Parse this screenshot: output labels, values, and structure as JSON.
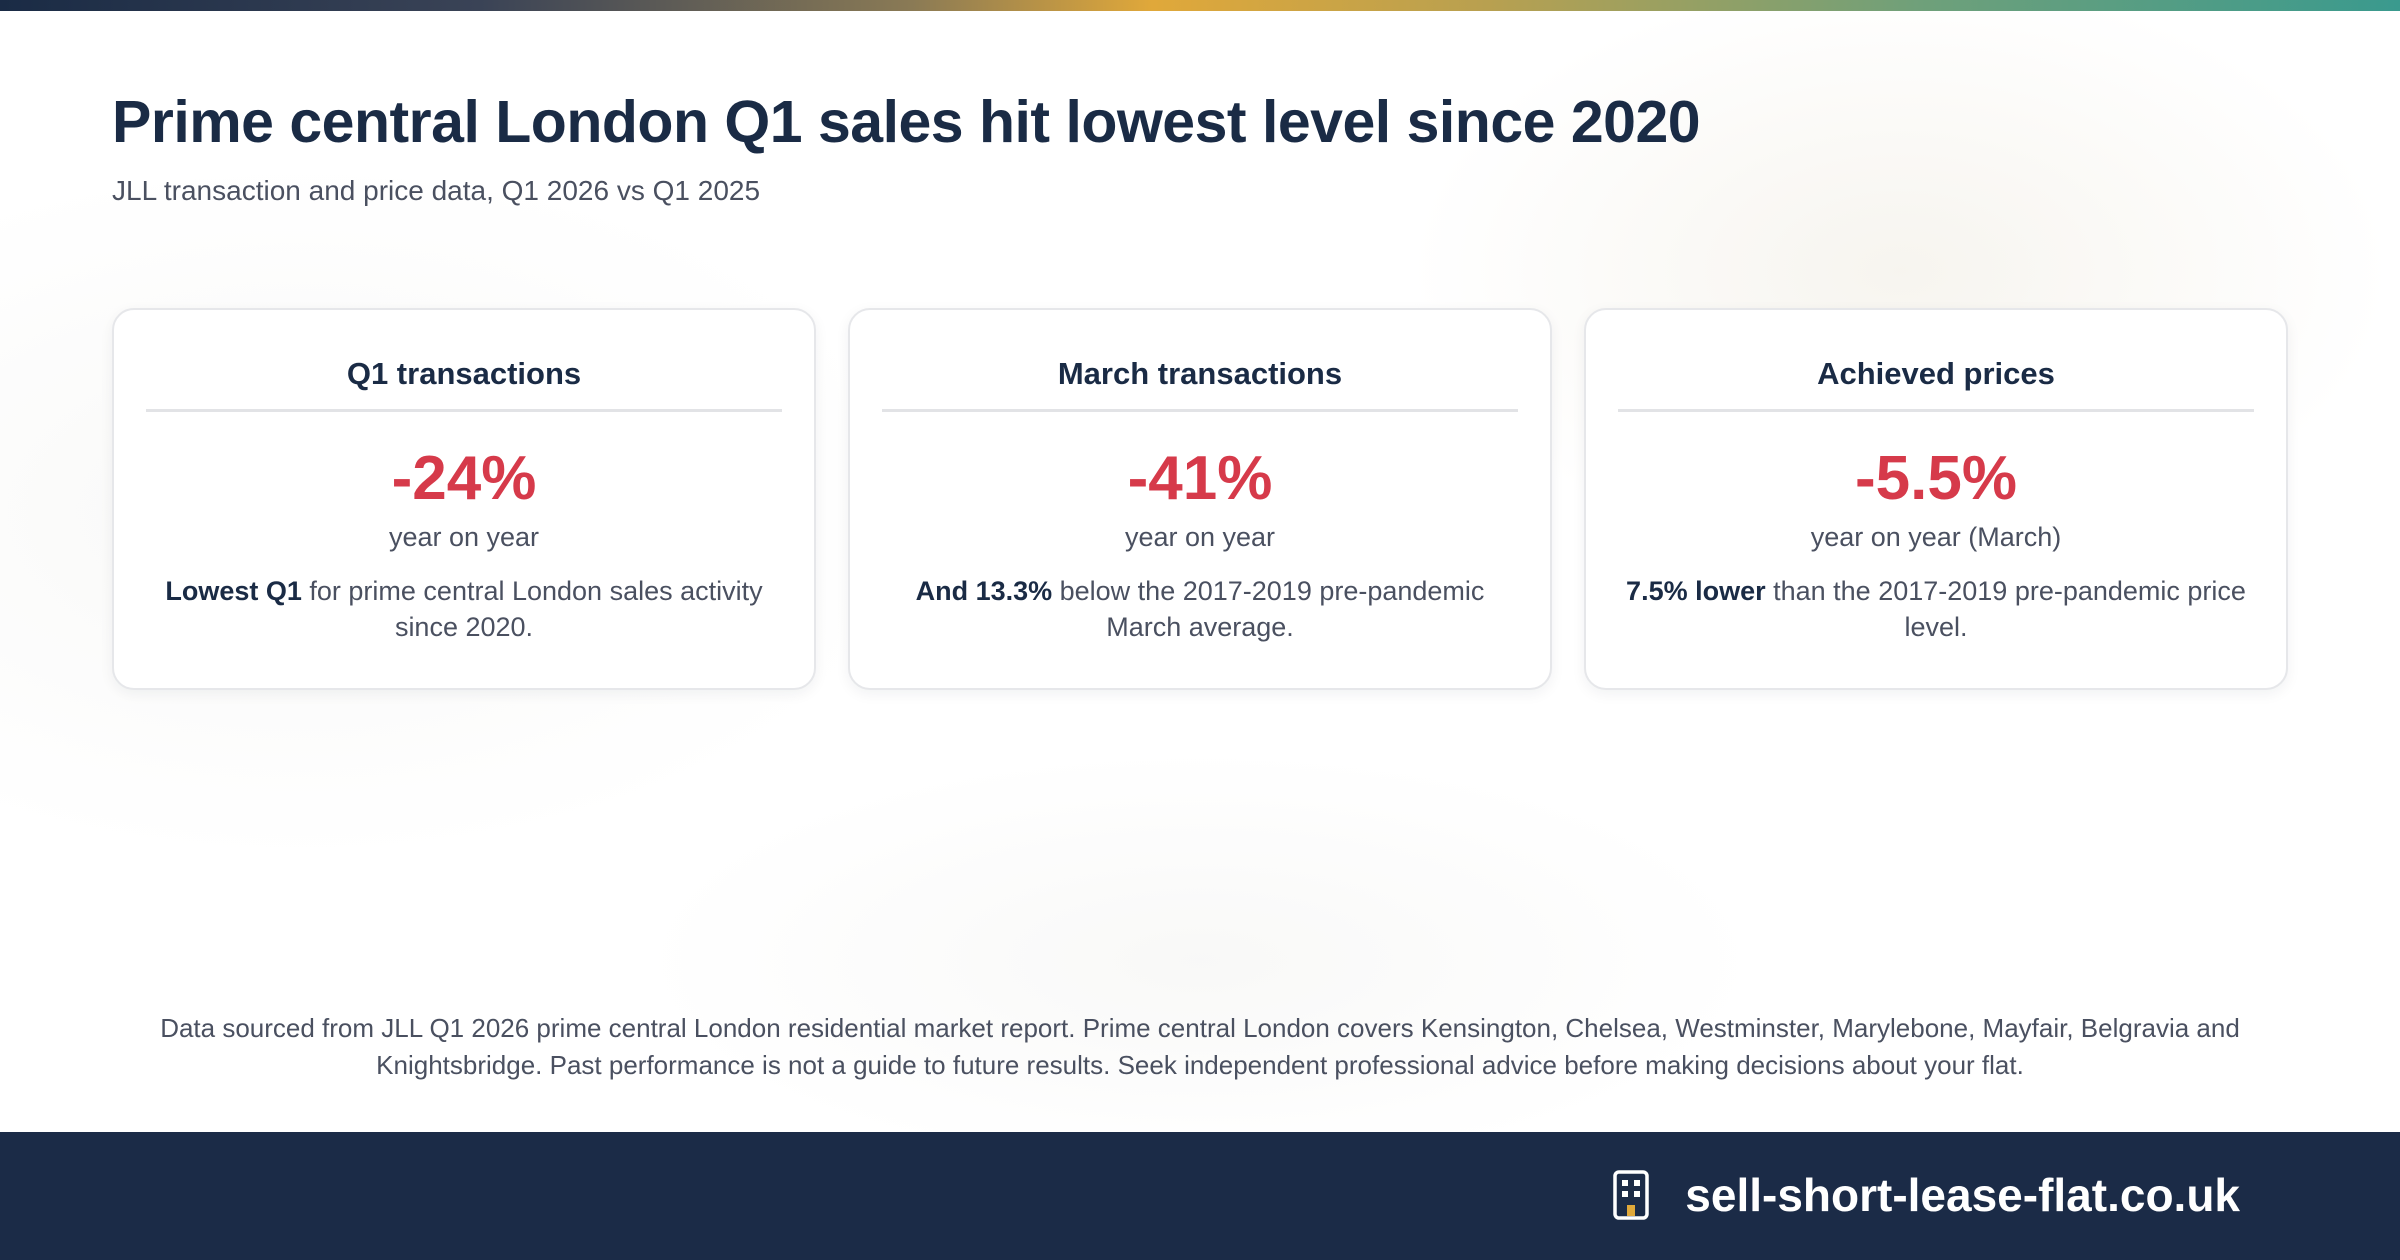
{
  "header": {
    "title": "Prime central London Q1 sales hit lowest level since 2020",
    "subtitle": "JLL transaction and price data, Q1 2026 vs Q1 2025"
  },
  "cards": [
    {
      "title": "Q1 transactions",
      "value": "-24%",
      "unit": "year on year",
      "note_bold": "Lowest Q1",
      "note_rest": " for prime central London sales activity since 2020."
    },
    {
      "title": "March transactions",
      "value": "-41%",
      "unit": "year on year",
      "note_bold": "And 13.3%",
      "note_rest": " below the 2017-2019 pre-pandemic March average."
    },
    {
      "title": "Achieved prices",
      "value": "-5.5%",
      "unit": "year on year (March)",
      "note_bold": "7.5% lower",
      "note_rest": " than the 2017-2019 pre-pandemic price level."
    }
  ],
  "disclaimer": "Data sourced from JLL Q1 2026 prime central London residential market report. Prime central London covers Kensington, Chelsea, Westminster, Marylebone, Mayfair, Belgravia and Knightsbridge. Past performance is not a guide to future results. Seek independent professional advice before making decisions about your flat.",
  "footer": {
    "brand": "sell-short-lease-flat.co.uk",
    "icon": "building-icon"
  },
  "colors": {
    "navy": "#1b2b47",
    "accent_red": "#d63a4a",
    "accent_gold": "#e0a83a"
  }
}
